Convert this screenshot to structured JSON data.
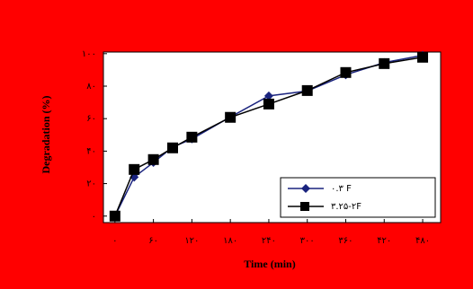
{
  "chart_data": {
    "type": "line",
    "x_label": "Time (min)",
    "y_label": "Degradation (%)",
    "x": [
      0,
      30,
      60,
      90,
      120,
      180,
      240,
      300,
      360,
      420,
      480
    ],
    "series": [
      {
        "name": "۰.۳ F",
        "color": "#1a237e",
        "marker": "diamond",
        "values": [
          0,
          24,
          33,
          42.5,
          47.5,
          61,
          74,
          77,
          87,
          94.5,
          99
        ]
      },
      {
        "name": "۳.۲۵-۲F",
        "color": "#000000",
        "marker": "square",
        "values": [
          0,
          28.7,
          34.8,
          42,
          48.6,
          60.8,
          69,
          77.3,
          88.4,
          93.9,
          97.8
        ]
      }
    ],
    "xlim": [
      -18,
      508
    ],
    "ylim": [
      -4,
      101
    ],
    "xticks": [
      {
        "value": 0,
        "label": "۰"
      },
      {
        "value": 60,
        "label": "۶۰"
      },
      {
        "value": 120,
        "label": "۱۲۰"
      },
      {
        "value": 180,
        "label": "۱۸۰"
      },
      {
        "value": 240,
        "label": "۲۴۰"
      },
      {
        "value": 300,
        "label": "۳۰۰"
      },
      {
        "value": 360,
        "label": "۳۶۰"
      },
      {
        "value": 420,
        "label": "۴۲۰"
      },
      {
        "value": 480,
        "label": "۴۸۰"
      }
    ],
    "yticks": [
      {
        "value": 0,
        "label": "۰"
      },
      {
        "value": 20,
        "label": "۲۰"
      },
      {
        "value": 40,
        "label": "۴۰"
      },
      {
        "value": 60,
        "label": "۶۰"
      },
      {
        "value": 80,
        "label": "۸۰"
      },
      {
        "value": 100,
        "label": "۱۰۰"
      }
    ],
    "grid": false,
    "legend": "lower right"
  }
}
